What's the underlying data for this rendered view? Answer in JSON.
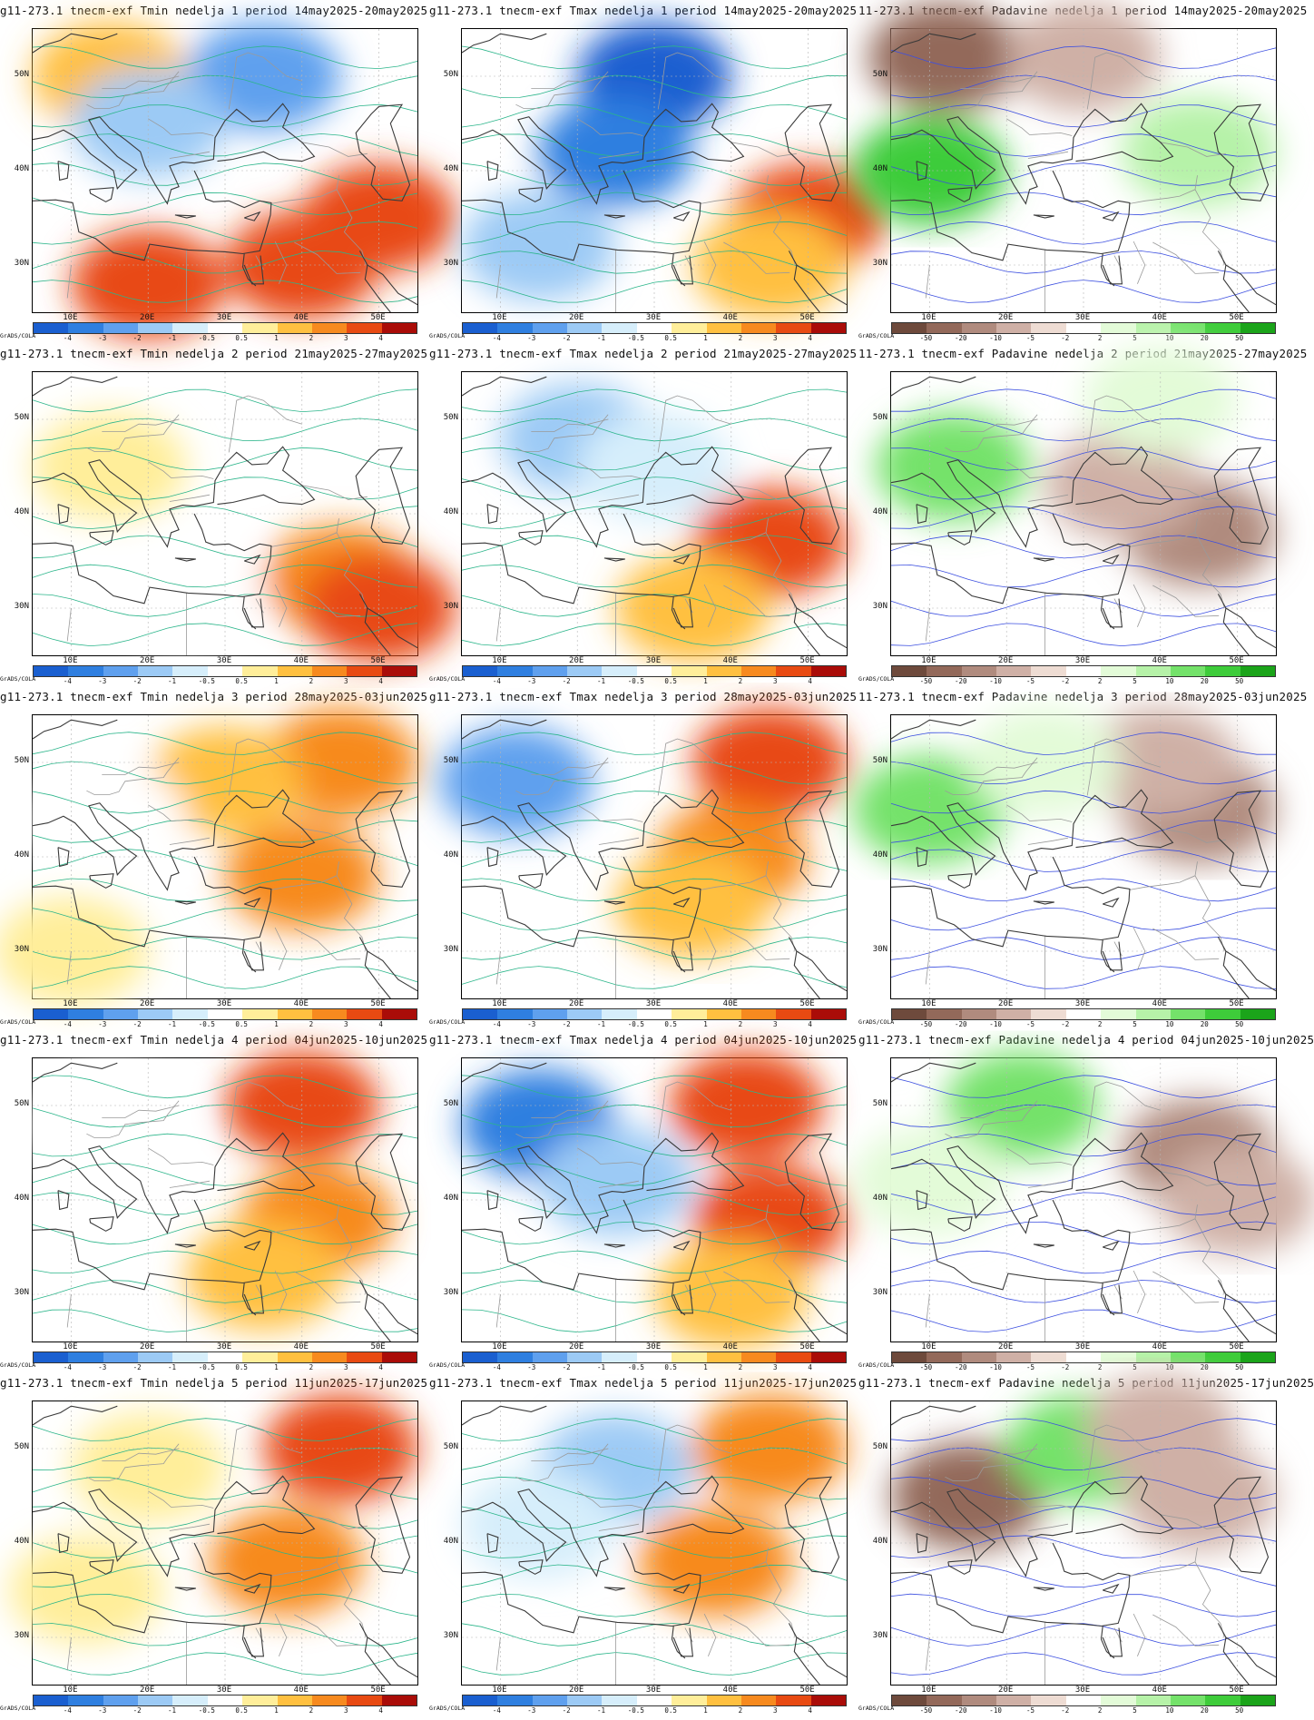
{
  "credit": "GrADS/COLA",
  "lat_labels": [
    "50N",
    "40N",
    "30N"
  ],
  "lon_labels": [
    "10E",
    "20E",
    "30E",
    "40E",
    "50E"
  ],
  "temp_colorbar": {
    "labels": [
      "-4",
      "-3",
      "-2",
      "-1",
      "-0.5",
      "0.5",
      "1",
      "2",
      "3",
      "4"
    ],
    "colors": [
      "#1a5fd0",
      "#2f7fe0",
      "#5fa0ee",
      "#9ccaf5",
      "#d6eefb",
      "#ffffff",
      "#ffee9a",
      "#ffc040",
      "#f78a1f",
      "#e84a12",
      "#aa0c08"
    ]
  },
  "precip_colorbar": {
    "labels": [
      "-50",
      "-20",
      "-10",
      "-5",
      "-2",
      "2",
      "5",
      "10",
      "20",
      "50"
    ],
    "colors": [
      "#6e4a3c",
      "#93695a",
      "#b08b7e",
      "#cfb0a6",
      "#eedcd3",
      "#ffffff",
      "#e3fbd8",
      "#b6f2a8",
      "#74e26a",
      "#3ecc3a",
      "#1ba41a"
    ]
  },
  "titles": [
    "g11-273.1 tnecm-exf Tmin nedelja 1 period 14may2025-20may2025",
    "g11-273.1 tnecm-exf Tmax nedelja 1 period 14may2025-20may2025",
    "11-273.1 tnecm-exf Padavine nedelja 1 period 14may2025-20may2025",
    "g11-273.1 tnecm-exf Tmin nedelja 2 period 21may2025-27may2025",
    "g11-273.1 tnecm-exf Tmax nedelja 2 period 21may2025-27may2025",
    "11-273.1 tnecm-exf Padavine nedelja 2 period 21may2025-27may2025",
    "g11-273.1 tnecm-exf Tmin nedelja 3 period 28may2025-03jun2025",
    "g11-273.1 tnecm-exf Tmax nedelja 3 period 28may2025-03jun2025",
    "11-273.1 tnecm-exf Padavine nedelja 3 period 28may2025-03jun2025",
    "g11-273.1 tnecm-exf Tmin nedelja 4 period 04jun2025-10jun2025",
    "g11-273.1 tnecm-exf Tmax nedelja 4 period 04jun2025-10jun2025",
    "g11-273.1 tnecm-exf Padavine nedelja 4 period 04jun2025-10jun2025",
    "g11-273.1 tnecm-exf Tmin nedelja 5 period 11jun2025-17jun2025",
    "g11-273.1 tnecm-exf Tmax nedelja 5 period 11jun2025-17jun2025",
    "g11-273.1 tnecm-exf Padavine nedelja 5 period 11jun2025-17jun2025"
  ],
  "panel_types": [
    "temp",
    "temp",
    "precip",
    "temp",
    "temp",
    "precip",
    "temp",
    "temp",
    "precip",
    "temp",
    "temp",
    "precip",
    "temp",
    "temp",
    "precip"
  ],
  "anomaly_fields": [
    [
      {
        "lon": 40,
        "lat": 30,
        "level": 4
      },
      {
        "lon": 20,
        "lat": 28,
        "level": 4
      },
      {
        "lon": 50,
        "lat": 35,
        "level": 4
      },
      {
        "lon": 15,
        "lat": 50,
        "level": 2
      },
      {
        "lon": 35,
        "lat": 50,
        "level": -2
      },
      {
        "lon": 20,
        "lat": 45,
        "level": -1
      }
    ],
    [
      {
        "lon": 30,
        "lat": 50,
        "level": -4
      },
      {
        "lon": 25,
        "lat": 42,
        "level": -3
      },
      {
        "lon": 50,
        "lat": 35,
        "level": 4
      },
      {
        "lon": 45,
        "lat": 30,
        "level": 2
      },
      {
        "lon": 15,
        "lat": 32,
        "level": -1
      }
    ],
    [
      {
        "lon": 10,
        "lat": 40,
        "level": 50
      },
      {
        "lon": 12,
        "lat": 52,
        "level": -20
      },
      {
        "lon": 30,
        "lat": 52,
        "level": -5
      },
      {
        "lon": 45,
        "lat": 42,
        "level": 10
      }
    ],
    [
      {
        "lon": 45,
        "lat": 33,
        "level": 3
      },
      {
        "lon": 50,
        "lat": 30,
        "level": 4
      },
      {
        "lon": 15,
        "lat": 45,
        "level": 1
      },
      {
        "lon": 25,
        "lat": 32,
        "level": 0.5
      }
    ],
    [
      {
        "lon": 45,
        "lat": 37,
        "level": 4
      },
      {
        "lon": 35,
        "lat": 30,
        "level": 2
      },
      {
        "lon": 20,
        "lat": 48,
        "level": -1
      },
      {
        "lon": 30,
        "lat": 45,
        "level": -0.5
      }
    ],
    [
      {
        "lon": 13,
        "lat": 45,
        "level": 20
      },
      {
        "lon": 45,
        "lat": 38,
        "level": -10
      },
      {
        "lon": 35,
        "lat": 43,
        "level": -5
      },
      {
        "lon": 40,
        "lat": 52,
        "level": 5
      }
    ],
    [
      {
        "lon": 45,
        "lat": 50,
        "level": 3
      },
      {
        "lon": 40,
        "lat": 38,
        "level": 3
      },
      {
        "lon": 30,
        "lat": 48,
        "level": 2
      },
      {
        "lon": 10,
        "lat": 30,
        "level": 1
      },
      {
        "lon": 15,
        "lat": 44,
        "level": 0.5
      }
    ],
    [
      {
        "lon": 45,
        "lat": 50,
        "level": 4
      },
      {
        "lon": 40,
        "lat": 40,
        "level": 3
      },
      {
        "lon": 12,
        "lat": 48,
        "level": -2
      },
      {
        "lon": 35,
        "lat": 35,
        "level": 2
      }
    ],
    [
      {
        "lon": 10,
        "lat": 45,
        "level": 20
      },
      {
        "lon": 45,
        "lat": 45,
        "level": -10
      },
      {
        "lon": 40,
        "lat": 50,
        "level": -5
      },
      {
        "lon": 25,
        "lat": 50,
        "level": 5
      }
    ],
    [
      {
        "lon": 40,
        "lat": 50,
        "level": 4
      },
      {
        "lon": 42,
        "lat": 38,
        "level": 3
      },
      {
        "lon": 35,
        "lat": 32,
        "level": 2
      },
      {
        "lon": 15,
        "lat": 48,
        "level": 0.5
      }
    ],
    [
      {
        "lon": 42,
        "lat": 50,
        "level": 4
      },
      {
        "lon": 45,
        "lat": 38,
        "level": 4
      },
      {
        "lon": 15,
        "lat": 48,
        "level": -3
      },
      {
        "lon": 25,
        "lat": 42,
        "level": -1
      },
      {
        "lon": 40,
        "lat": 30,
        "level": 2
      }
    ],
    [
      {
        "lon": 22,
        "lat": 50,
        "level": 20
      },
      {
        "lon": 45,
        "lat": 45,
        "level": -10
      },
      {
        "lon": 10,
        "lat": 42,
        "level": 5
      },
      {
        "lon": 50,
        "lat": 40,
        "level": -5
      }
    ],
    [
      {
        "lon": 45,
        "lat": 50,
        "level": 4
      },
      {
        "lon": 20,
        "lat": 48,
        "level": 1
      },
      {
        "lon": 38,
        "lat": 38,
        "level": 3
      },
      {
        "lon": 12,
        "lat": 35,
        "level": 1
      }
    ],
    [
      {
        "lon": 45,
        "lat": 50,
        "level": 3
      },
      {
        "lon": 38,
        "lat": 38,
        "level": 3
      },
      {
        "lon": 25,
        "lat": 48,
        "level": -1
      },
      {
        "lon": 15,
        "lat": 42,
        "level": -0.5
      }
    ],
    [
      {
        "lon": 15,
        "lat": 45,
        "level": -20
      },
      {
        "lon": 30,
        "lat": 50,
        "level": 20
      },
      {
        "lon": 45,
        "lat": 45,
        "level": -5
      },
      {
        "lon": 40,
        "lat": 52,
        "level": -5
      }
    ]
  ]
}
